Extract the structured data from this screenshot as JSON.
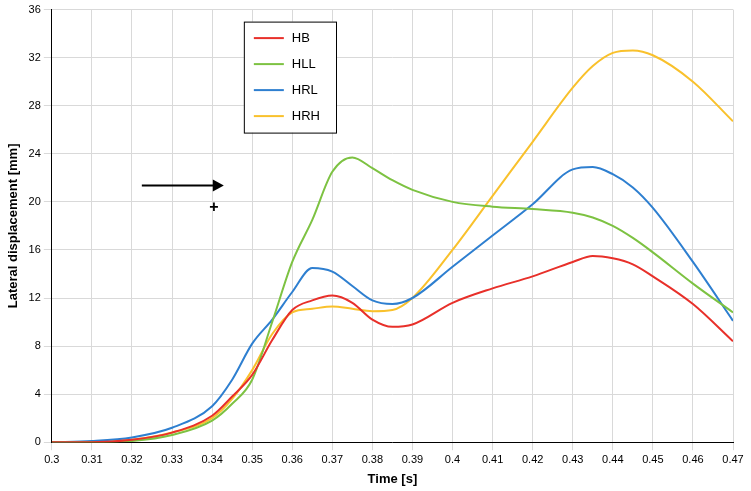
{
  "chart_data": {
    "type": "line",
    "x_label": "Time [s]",
    "y_label": "Lateral displacement [mm]",
    "annotations": [
      "+"
    ],
    "x": [
      0.3,
      0.31,
      0.32,
      0.33,
      0.34,
      0.345,
      0.35,
      0.355,
      0.36,
      0.365,
      0.37,
      0.375,
      0.38,
      0.385,
      0.39,
      0.4,
      0.41,
      0.42,
      0.43,
      0.435,
      0.44,
      0.445,
      0.45,
      0.46,
      0.47
    ],
    "series": [
      {
        "name": "HB",
        "color": "#e8302a",
        "values": [
          0,
          0,
          0.2,
          0.8,
          2.2,
          3.8,
          5.6,
          8.5,
          11,
          11.8,
          12.2,
          11.6,
          10.2,
          9.6,
          9.8,
          11.6,
          12.8,
          13.8,
          15.0,
          15.5,
          15.3,
          14.8,
          13.8,
          11.5,
          8.4
        ]
      },
      {
        "name": "HLL",
        "color": "#7dc242",
        "values": [
          0,
          0,
          0.1,
          0.6,
          1.8,
          3.2,
          5.2,
          10,
          15,
          18.5,
          22.5,
          23.7,
          22.8,
          21.8,
          21,
          20,
          19.6,
          19.4,
          19.1,
          18.7,
          18,
          17,
          15.8,
          13.2,
          10.8
        ]
      },
      {
        "name": "HRL",
        "color": "#2e7fd0",
        "values": [
          0,
          0.1,
          0.4,
          1.2,
          3,
          5.2,
          8.2,
          10.2,
          12.5,
          14.5,
          14.2,
          13,
          11.8,
          11.5,
          12,
          14.6,
          17.2,
          19.8,
          22.7,
          22.9,
          22.3,
          21.2,
          19.5,
          15,
          10.1
        ]
      },
      {
        "name": "HRH",
        "color": "#f9c12c",
        "values": [
          0,
          0,
          0.2,
          0.8,
          2,
          3.6,
          6,
          9,
          10.8,
          11.1,
          11.3,
          11.1,
          10.9,
          11,
          12,
          16,
          20.5,
          25,
          29.5,
          31.3,
          32.4,
          32.6,
          32.2,
          30,
          26.7
        ]
      }
    ],
    "xlim": [
      0.3,
      0.47
    ],
    "xticks": [
      0.3,
      0.31,
      0.32,
      0.33,
      0.34,
      0.35,
      0.36,
      0.37,
      0.38,
      0.39,
      0.4,
      0.41,
      0.42,
      0.43,
      0.44,
      0.45,
      0.46,
      0.47
    ],
    "ylim": [
      0,
      36
    ],
    "yticks": [
      0,
      4,
      8,
      12,
      16,
      20,
      24,
      28,
      32,
      36
    ],
    "grid": true,
    "legend": "upper left"
  }
}
